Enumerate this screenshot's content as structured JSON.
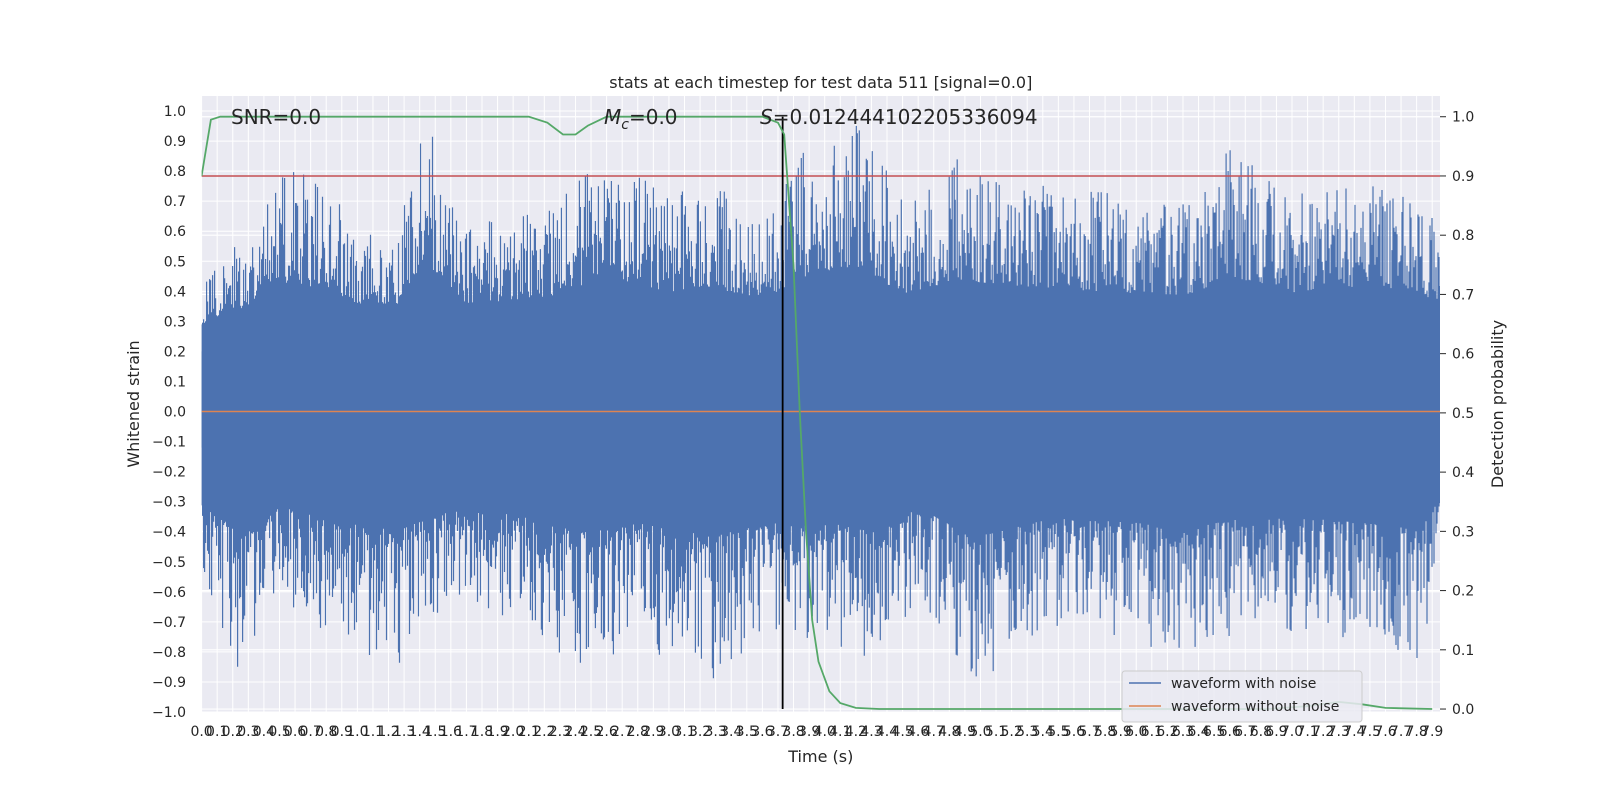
{
  "chart_data": {
    "type": "line",
    "title": "stats at each timestep for test data 511 [signal=0.0]",
    "xlabel": "Time (s)",
    "ylabel": "Whitened strain",
    "y2label": "Detection probability",
    "xlim": [
      0.0,
      7.95
    ],
    "ylim": [
      -1.0,
      1.05
    ],
    "y2lim": [
      -0.005,
      1.035
    ],
    "x_ticks": [
      "0.0",
      "0.1",
      "0.2",
      "0.3",
      "0.4",
      "0.5",
      "0.6",
      "0.7",
      "0.8",
      "0.9",
      "1.0",
      "1.1",
      "1.2",
      "1.3",
      "1.4",
      "1.5",
      "1.6",
      "1.7",
      "1.8",
      "1.9",
      "2.0",
      "2.1",
      "2.2",
      "2.3",
      "2.4",
      "2.5",
      "2.6",
      "2.7",
      "2.8",
      "2.9",
      "3.0",
      "3.1",
      "3.2",
      "3.3",
      "3.4",
      "3.5",
      "3.6",
      "3.7",
      "3.8",
      "3.9",
      "4.0",
      "4.1",
      "4.2",
      "4.3",
      "4.4",
      "4.5",
      "4.6",
      "4.7",
      "4.8",
      "4.9",
      "5.0",
      "5.1",
      "5.2",
      "5.3",
      "5.4",
      "5.5",
      "5.6",
      "5.7",
      "5.8",
      "5.9",
      "6.0",
      "6.1",
      "6.2",
      "6.3",
      "6.4",
      "6.5",
      "6.6",
      "6.7",
      "6.8",
      "6.9",
      "7.0",
      "7.1",
      "7.2",
      "7.3",
      "7.4",
      "7.5",
      "7.6",
      "7.7",
      "7.8",
      "7.9"
    ],
    "y_ticks": [
      "1.0",
      "0.9",
      "0.8",
      "0.7",
      "0.6",
      "0.5",
      "0.4",
      "0.3",
      "0.2",
      "0.1",
      "0.0",
      "−0.1",
      "−0.2",
      "−0.3",
      "−0.4",
      "−0.5",
      "−0.6",
      "−0.7",
      "−0.8",
      "−0.9",
      "−1.0"
    ],
    "y2_ticks": [
      "1.0",
      "0.9",
      "0.8",
      "0.7",
      "0.6",
      "0.5",
      "0.4",
      "0.3",
      "0.2",
      "0.1",
      "0.0"
    ],
    "annotations": {
      "snr": "SNR=0.0",
      "mc": "=0.0",
      "mc_symbol": "M",
      "mc_subscript": "c",
      "s": "=0.012444102205336094",
      "s_symbol": "S"
    },
    "series": [
      {
        "name": "waveform with noise",
        "color": "#4c72b0",
        "envelope_upper": [
          [
            0.0,
            0.42
          ],
          [
            0.3,
            0.6
          ],
          [
            0.45,
            0.83
          ],
          [
            0.8,
            0.76
          ],
          [
            1.0,
            0.62
          ],
          [
            1.25,
            0.6
          ],
          [
            1.43,
            1.0
          ],
          [
            1.7,
            0.62
          ],
          [
            2.0,
            0.65
          ],
          [
            2.2,
            0.67
          ],
          [
            2.6,
            0.86
          ],
          [
            3.0,
            0.73
          ],
          [
            3.25,
            0.78
          ],
          [
            3.6,
            0.66
          ],
          [
            3.9,
            0.89
          ],
          [
            4.25,
            0.96
          ],
          [
            4.5,
            0.7
          ],
          [
            4.85,
            0.84
          ],
          [
            5.3,
            0.78
          ],
          [
            5.6,
            0.75
          ],
          [
            6.0,
            0.71
          ],
          [
            6.4,
            0.7
          ],
          [
            6.6,
            0.88
          ],
          [
            7.0,
            0.72
          ],
          [
            7.55,
            0.8
          ],
          [
            7.95,
            0.63
          ]
        ],
        "envelope_lower": [
          [
            0.0,
            -0.55
          ],
          [
            0.26,
            -0.92
          ],
          [
            0.5,
            -0.62
          ],
          [
            0.8,
            -0.74
          ],
          [
            1.0,
            -0.8
          ],
          [
            1.25,
            -0.85
          ],
          [
            1.6,
            -0.67
          ],
          [
            2.0,
            -0.7
          ],
          [
            2.45,
            -0.87
          ],
          [
            2.8,
            -0.78
          ],
          [
            3.3,
            -0.9
          ],
          [
            3.7,
            -0.77
          ],
          [
            4.1,
            -0.8
          ],
          [
            4.35,
            -0.88
          ],
          [
            4.6,
            -0.63
          ],
          [
            4.95,
            -0.92
          ],
          [
            5.4,
            -0.75
          ],
          [
            5.7,
            -0.72
          ],
          [
            6.1,
            -0.8
          ],
          [
            6.5,
            -0.78
          ],
          [
            6.8,
            -0.72
          ],
          [
            7.2,
            -0.75
          ],
          [
            7.55,
            -0.79
          ],
          [
            7.8,
            -0.84
          ],
          [
            7.95,
            -0.55
          ]
        ]
      },
      {
        "name": "waveform without noise",
        "color": "#dd8452",
        "constant_value": 0.0
      }
    ],
    "detection_probability": {
      "color": "#55a868",
      "points": [
        [
          0.0,
          0.9
        ],
        [
          0.06,
          0.995
        ],
        [
          0.12,
          1.0
        ],
        [
          2.1,
          1.0
        ],
        [
          2.22,
          0.99
        ],
        [
          2.32,
          0.97
        ],
        [
          2.4,
          0.97
        ],
        [
          2.48,
          0.985
        ],
        [
          2.6,
          1.0
        ],
        [
          3.6,
          1.0
        ],
        [
          3.7,
          0.99
        ],
        [
          3.74,
          0.97
        ],
        [
          3.8,
          0.75
        ],
        [
          3.84,
          0.5
        ],
        [
          3.88,
          0.3
        ],
        [
          3.92,
          0.15
        ],
        [
          3.96,
          0.08
        ],
        [
          4.03,
          0.03
        ],
        [
          4.1,
          0.01
        ],
        [
          4.2,
          0.002
        ],
        [
          4.35,
          0.0
        ],
        [
          6.85,
          0.0
        ],
        [
          7.1,
          0.005
        ],
        [
          7.3,
          0.012
        ],
        [
          7.45,
          0.008
        ],
        [
          7.6,
          0.002
        ],
        [
          7.9,
          0.0
        ]
      ]
    },
    "threshold": {
      "color": "#c44e52",
      "value": 0.9
    },
    "event_marker": {
      "x": 3.73,
      "color": "#000000"
    },
    "grid": true,
    "legend_position": "lower right"
  }
}
